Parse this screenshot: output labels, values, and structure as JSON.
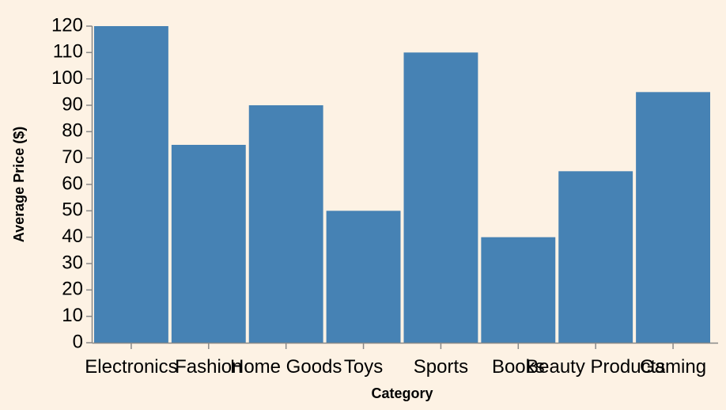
{
  "chart_data": {
    "type": "bar",
    "title": "",
    "xlabel": "Category",
    "ylabel": "Average Price ($)",
    "categories": [
      "Electronics",
      "Fashion",
      "Home Goods",
      "Toys",
      "Sports",
      "Books",
      "Beauty Products",
      "Gaming"
    ],
    "values": [
      120,
      75,
      90,
      50,
      110,
      40,
      65,
      95
    ],
    "ylim": [
      0,
      120
    ],
    "yticks": [
      0,
      10,
      20,
      30,
      40,
      50,
      60,
      70,
      80,
      90,
      100,
      110,
      120
    ],
    "grid": false,
    "bar_color": "#4682b4",
    "background_color": "#fdf2e4"
  }
}
